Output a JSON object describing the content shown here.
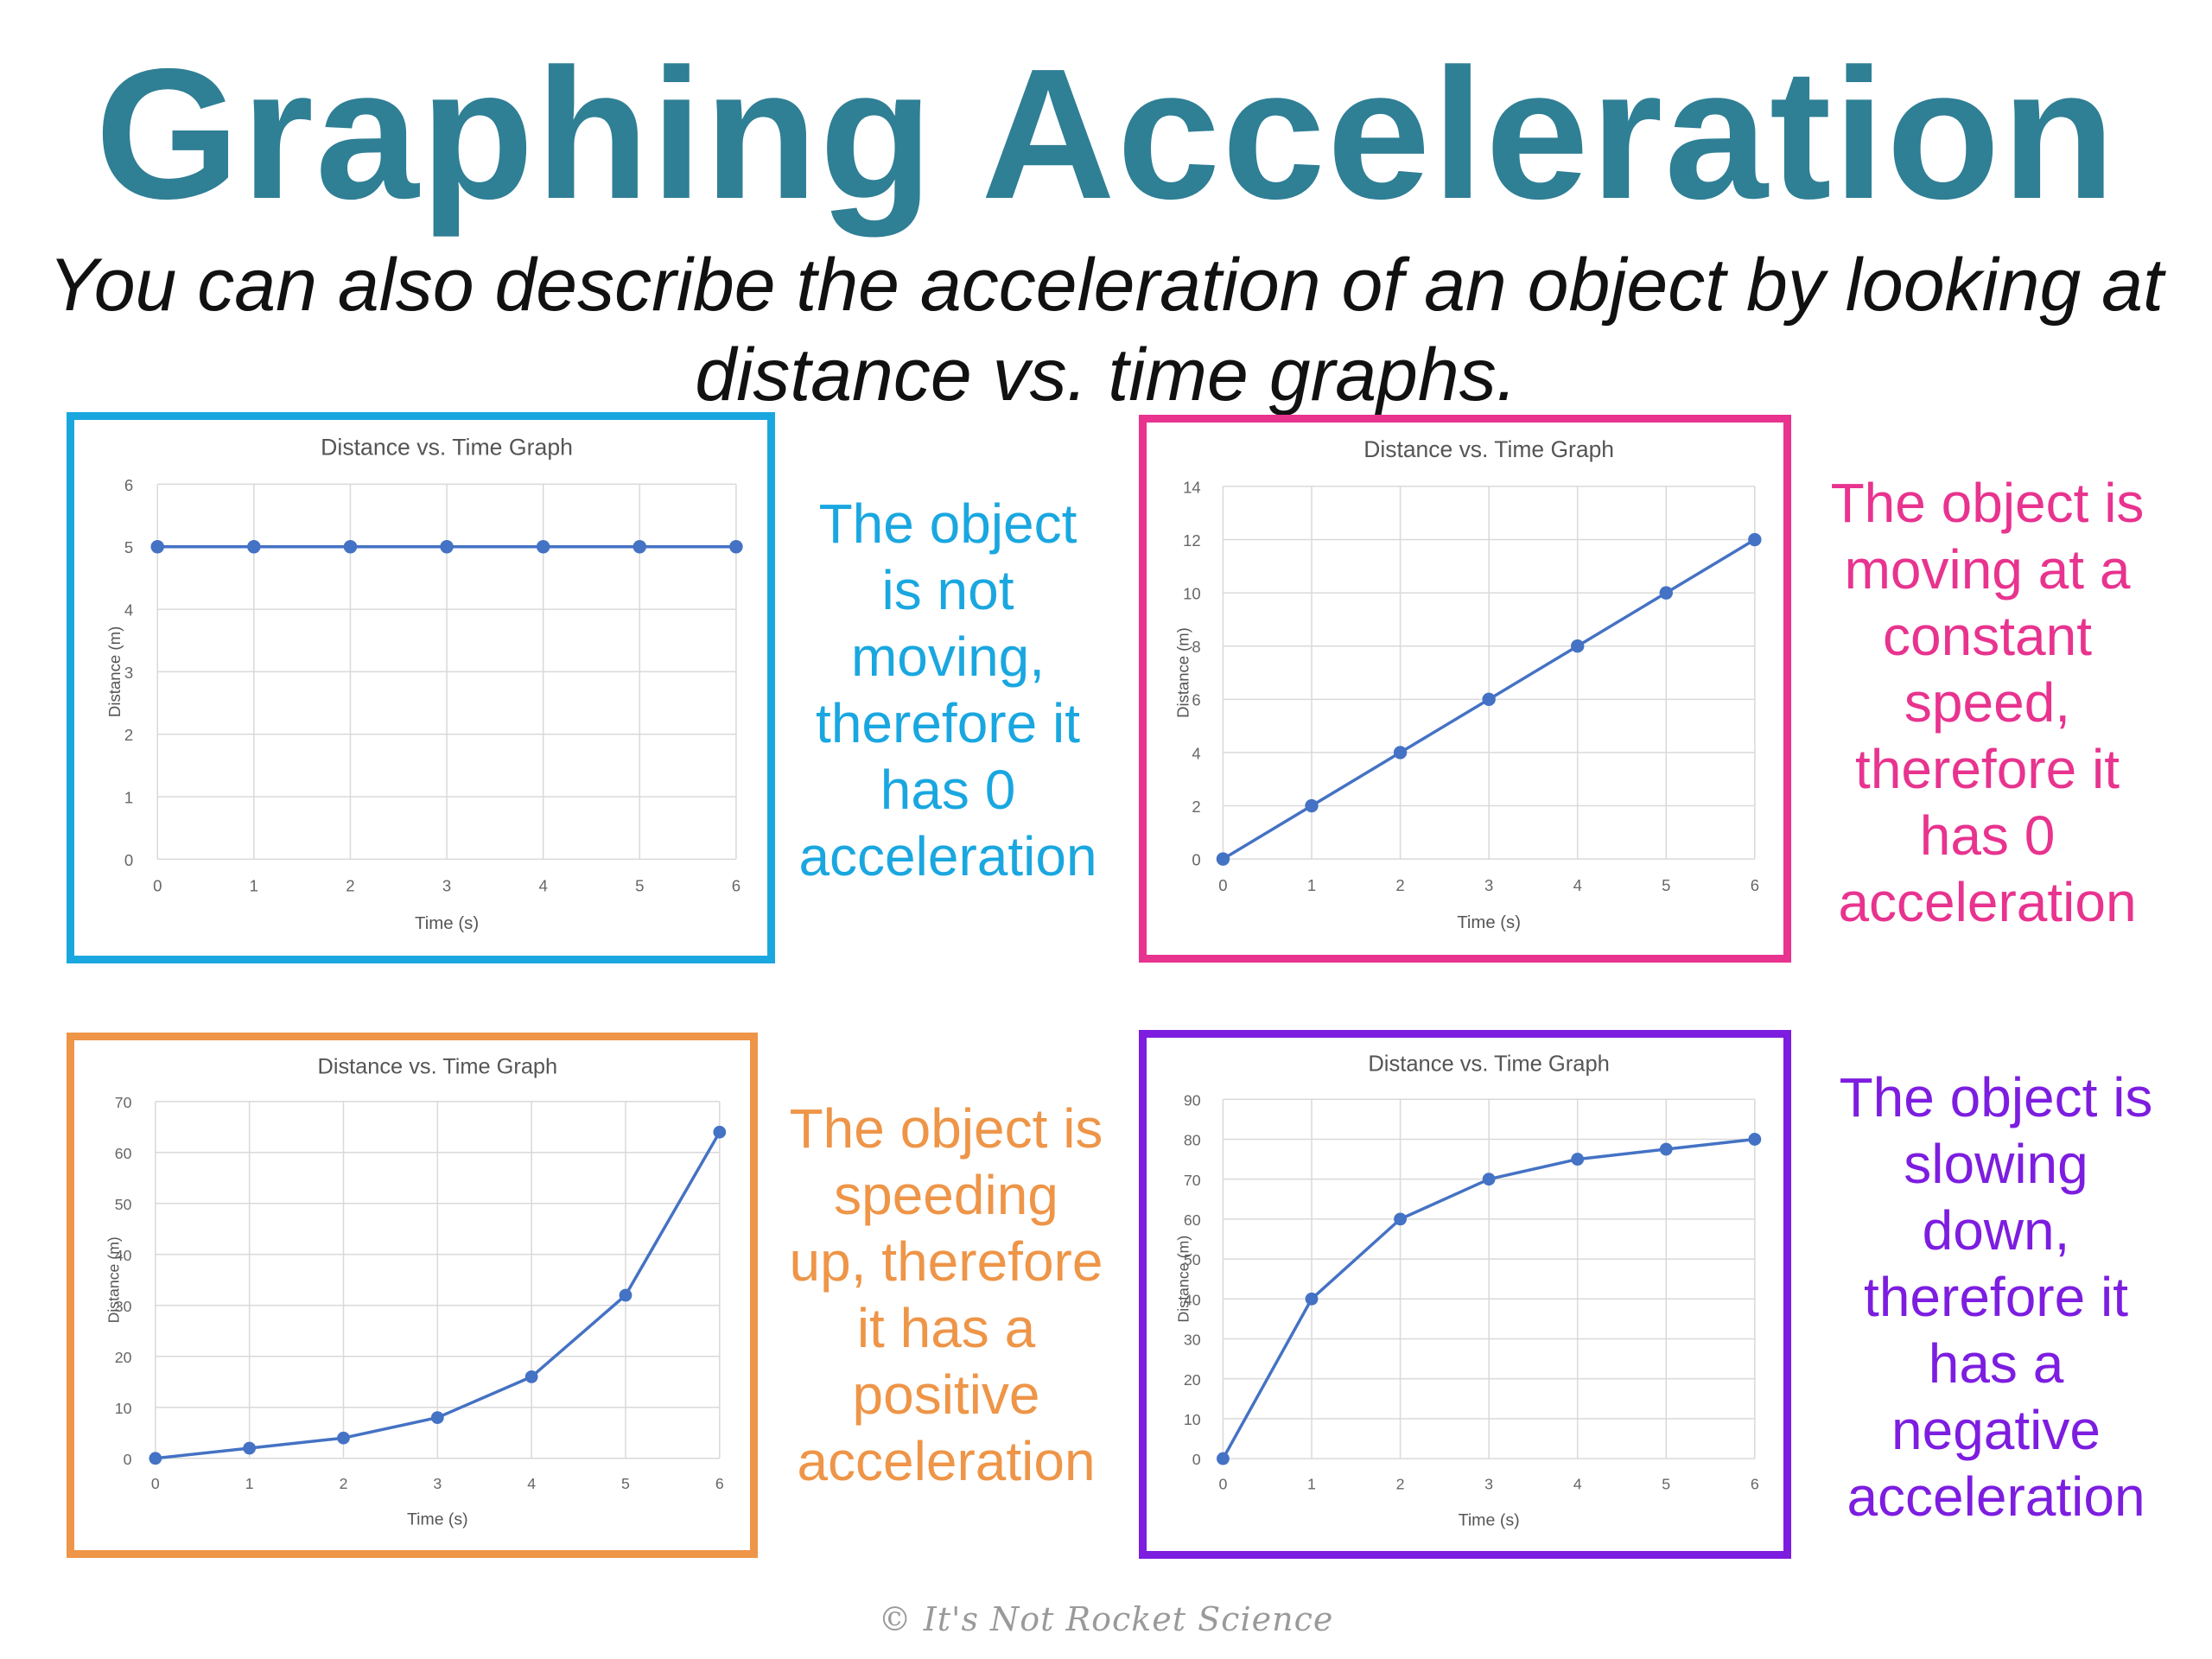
{
  "title": "Graphing Acceleration",
  "subtitle": "You can also describe the acceleration of an object by looking at distance vs. time graphs.",
  "credit": "© It's Not Rocket Science",
  "colors": {
    "title": "#2f7f95",
    "panel_1": "#1aa7e0",
    "panel_2": "#e8338f",
    "panel_3": "#ee9548",
    "panel_4": "#7d1de0",
    "series_line": "#4472c4",
    "grid": "#d9d9d9"
  },
  "descriptions": [
    {
      "lines": [
        "The object",
        "is not",
        "moving,",
        "therefore it",
        "has 0",
        "acceleration"
      ]
    },
    {
      "lines": [
        "The object is",
        "moving at a",
        "constant",
        "speed,",
        "therefore it",
        "has 0",
        "acceleration"
      ]
    },
    {
      "lines": [
        "The object is",
        "speeding",
        "up, therefore",
        "it has a",
        "positive",
        "acceleration"
      ]
    },
    {
      "lines": [
        "The object is",
        "slowing",
        "down,",
        "therefore it",
        "has a",
        "negative",
        "acceleration"
      ]
    }
  ],
  "chart_data": [
    {
      "type": "line",
      "title": "Distance vs. Time Graph",
      "xlabel": "Time (s)",
      "ylabel": "Distance (m)",
      "x": [
        0,
        1,
        2,
        3,
        4,
        5,
        6
      ],
      "xlim": [
        0,
        6
      ],
      "ylim": [
        0,
        6
      ],
      "yticks": [
        0,
        1,
        2,
        3,
        4,
        5,
        6
      ],
      "series": [
        {
          "values": [
            5,
            5,
            5,
            5,
            5,
            5,
            5
          ]
        }
      ],
      "grid": true,
      "markers": true
    },
    {
      "type": "line",
      "title": "Distance vs. Time Graph",
      "xlabel": "Time (s)",
      "ylabel": "Distance (m)",
      "x": [
        0,
        1,
        2,
        3,
        4,
        5,
        6
      ],
      "xlim": [
        0,
        6
      ],
      "ylim": [
        0,
        14
      ],
      "yticks": [
        0,
        2,
        4,
        6,
        8,
        10,
        12,
        14
      ],
      "series": [
        {
          "values": [
            0,
            2,
            4,
            6,
            8,
            10,
            12
          ]
        }
      ],
      "grid": true,
      "markers": true
    },
    {
      "type": "line",
      "title": "Distance vs. Time Graph",
      "xlabel": "Time (s)",
      "ylabel": "Distance (m)",
      "x": [
        0,
        1,
        2,
        3,
        4,
        5,
        6
      ],
      "xlim": [
        0,
        6
      ],
      "ylim": [
        0,
        70
      ],
      "yticks": [
        0,
        10,
        20,
        30,
        40,
        50,
        60,
        70
      ],
      "series": [
        {
          "values": [
            0,
            2,
            4,
            8,
            16,
            32,
            64
          ]
        }
      ],
      "grid": true,
      "markers": true
    },
    {
      "type": "line",
      "title": "Distance vs. Time Graph",
      "xlabel": "Time (s)",
      "ylabel": "Distance (m)",
      "x": [
        0,
        1,
        2,
        3,
        4,
        5,
        6
      ],
      "xlim": [
        0,
        6
      ],
      "ylim": [
        0,
        90
      ],
      "yticks": [
        0,
        10,
        20,
        30,
        40,
        50,
        60,
        70,
        80,
        90
      ],
      "series": [
        {
          "values": [
            0,
            40,
            60,
            70,
            75,
            77.5,
            80
          ]
        }
      ],
      "grid": true,
      "markers": true
    }
  ]
}
